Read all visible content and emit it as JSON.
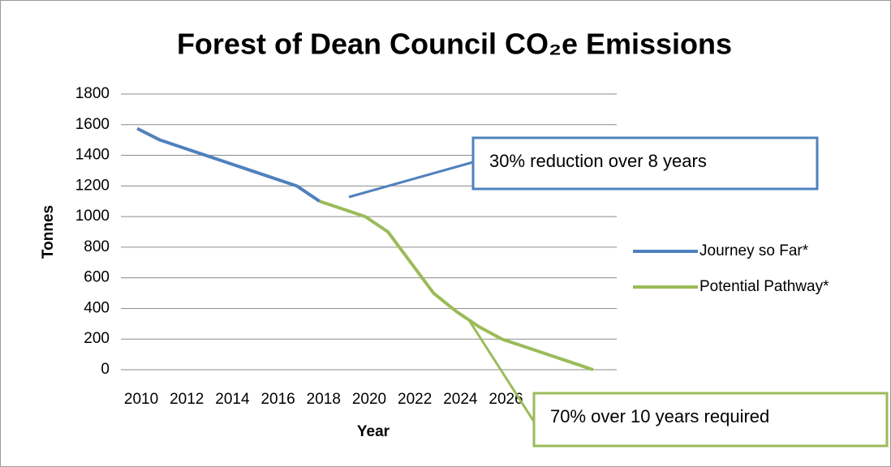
{
  "chart_data": {
    "type": "line",
    "title": "Forest of Dean Council CO₂e Emissions",
    "xlabel": "Year",
    "ylabel": "Tonnes",
    "categories": [
      "2010",
      null,
      "2012",
      null,
      "2014",
      null,
      "2016",
      null,
      "2018",
      null,
      "2020",
      null,
      "2022",
      null,
      "2024",
      null,
      "2026",
      null,
      null,
      null,
      null
    ],
    "series": [
      {
        "name": "Journey so Far*",
        "color": "#4f81bd",
        "values": [
          1575,
          1500,
          1450,
          1400,
          1350,
          1300,
          1250,
          1200,
          1100,
          null,
          null,
          null,
          null,
          null,
          null,
          null,
          null,
          null,
          null,
          null,
          null
        ]
      },
      {
        "name": "Potential Pathway*",
        "color": "#9bbb59",
        "values": [
          null,
          null,
          null,
          null,
          null,
          null,
          null,
          null,
          1100,
          1050,
          1000,
          900,
          700,
          500,
          380,
          280,
          200,
          150,
          100,
          50,
          0
        ]
      }
    ],
    "ylim": [
      0,
      1800
    ],
    "yticks": [
      0,
      200,
      400,
      600,
      800,
      1000,
      1200,
      1400,
      1600,
      1800
    ],
    "grid": true,
    "legend": "right",
    "annotations": [
      "30% reduction over 8 years",
      "70% over 10 years required"
    ]
  }
}
